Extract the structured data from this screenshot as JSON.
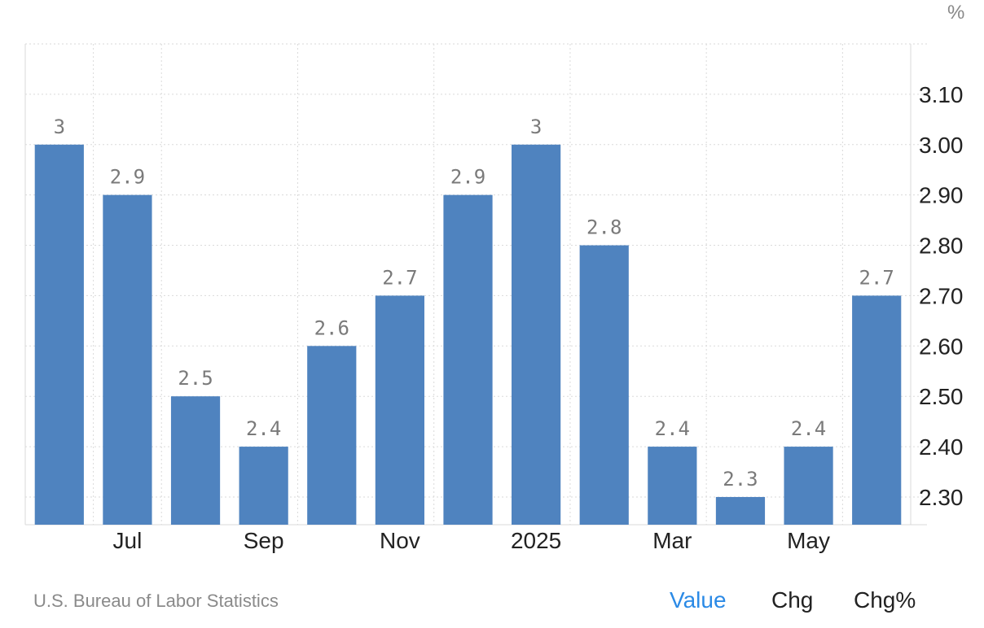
{
  "chart_data": {
    "type": "bar",
    "unit_label": "%",
    "categories": [
      "Jun 2024",
      "Jul 2024",
      "Aug 2024",
      "Sep 2024",
      "Oct 2024",
      "Nov 2024",
      "Dec 2024",
      "Jan 2025",
      "Feb 2025",
      "Mar 2025",
      "Apr 2025",
      "May 2025",
      "Jun 2025"
    ],
    "values": [
      3.0,
      2.9,
      2.5,
      2.4,
      2.6,
      2.7,
      2.9,
      3.0,
      2.8,
      2.4,
      2.3,
      2.4,
      2.7
    ],
    "data_labels": [
      "3",
      "2.9",
      "2.5",
      "2.4",
      "2.6",
      "2.7",
      "2.9",
      "3",
      "2.8",
      "2.4",
      "2.3",
      "2.4",
      "2.7"
    ],
    "x_tick_labels": [
      {
        "category_index": 1,
        "label": "Jul"
      },
      {
        "category_index": 3,
        "label": "Sep"
      },
      {
        "category_index": 5,
        "label": "Nov"
      },
      {
        "category_index": 7,
        "label": "2025"
      },
      {
        "category_index": 9,
        "label": "Mar"
      },
      {
        "category_index": 11,
        "label": "May"
      }
    ],
    "y_ticks": [
      2.3,
      2.4,
      2.5,
      2.6,
      2.7,
      2.8,
      2.9,
      3.0,
      3.1
    ],
    "y_tick_labels": [
      "2.30",
      "2.40",
      "2.50",
      "2.60",
      "2.70",
      "2.80",
      "2.90",
      "3.00",
      "3.10"
    ],
    "ylim": [
      2.245,
      3.2
    ],
    "y_axis_position": "right",
    "grid": true,
    "bar_color": "#4f83bf"
  },
  "footer": {
    "source": "U.S. Bureau of Labor Statistics",
    "toggles": [
      {
        "label": "Value",
        "active": true
      },
      {
        "label": "Chg",
        "active": false
      },
      {
        "label": "Chg%",
        "active": false
      }
    ]
  }
}
